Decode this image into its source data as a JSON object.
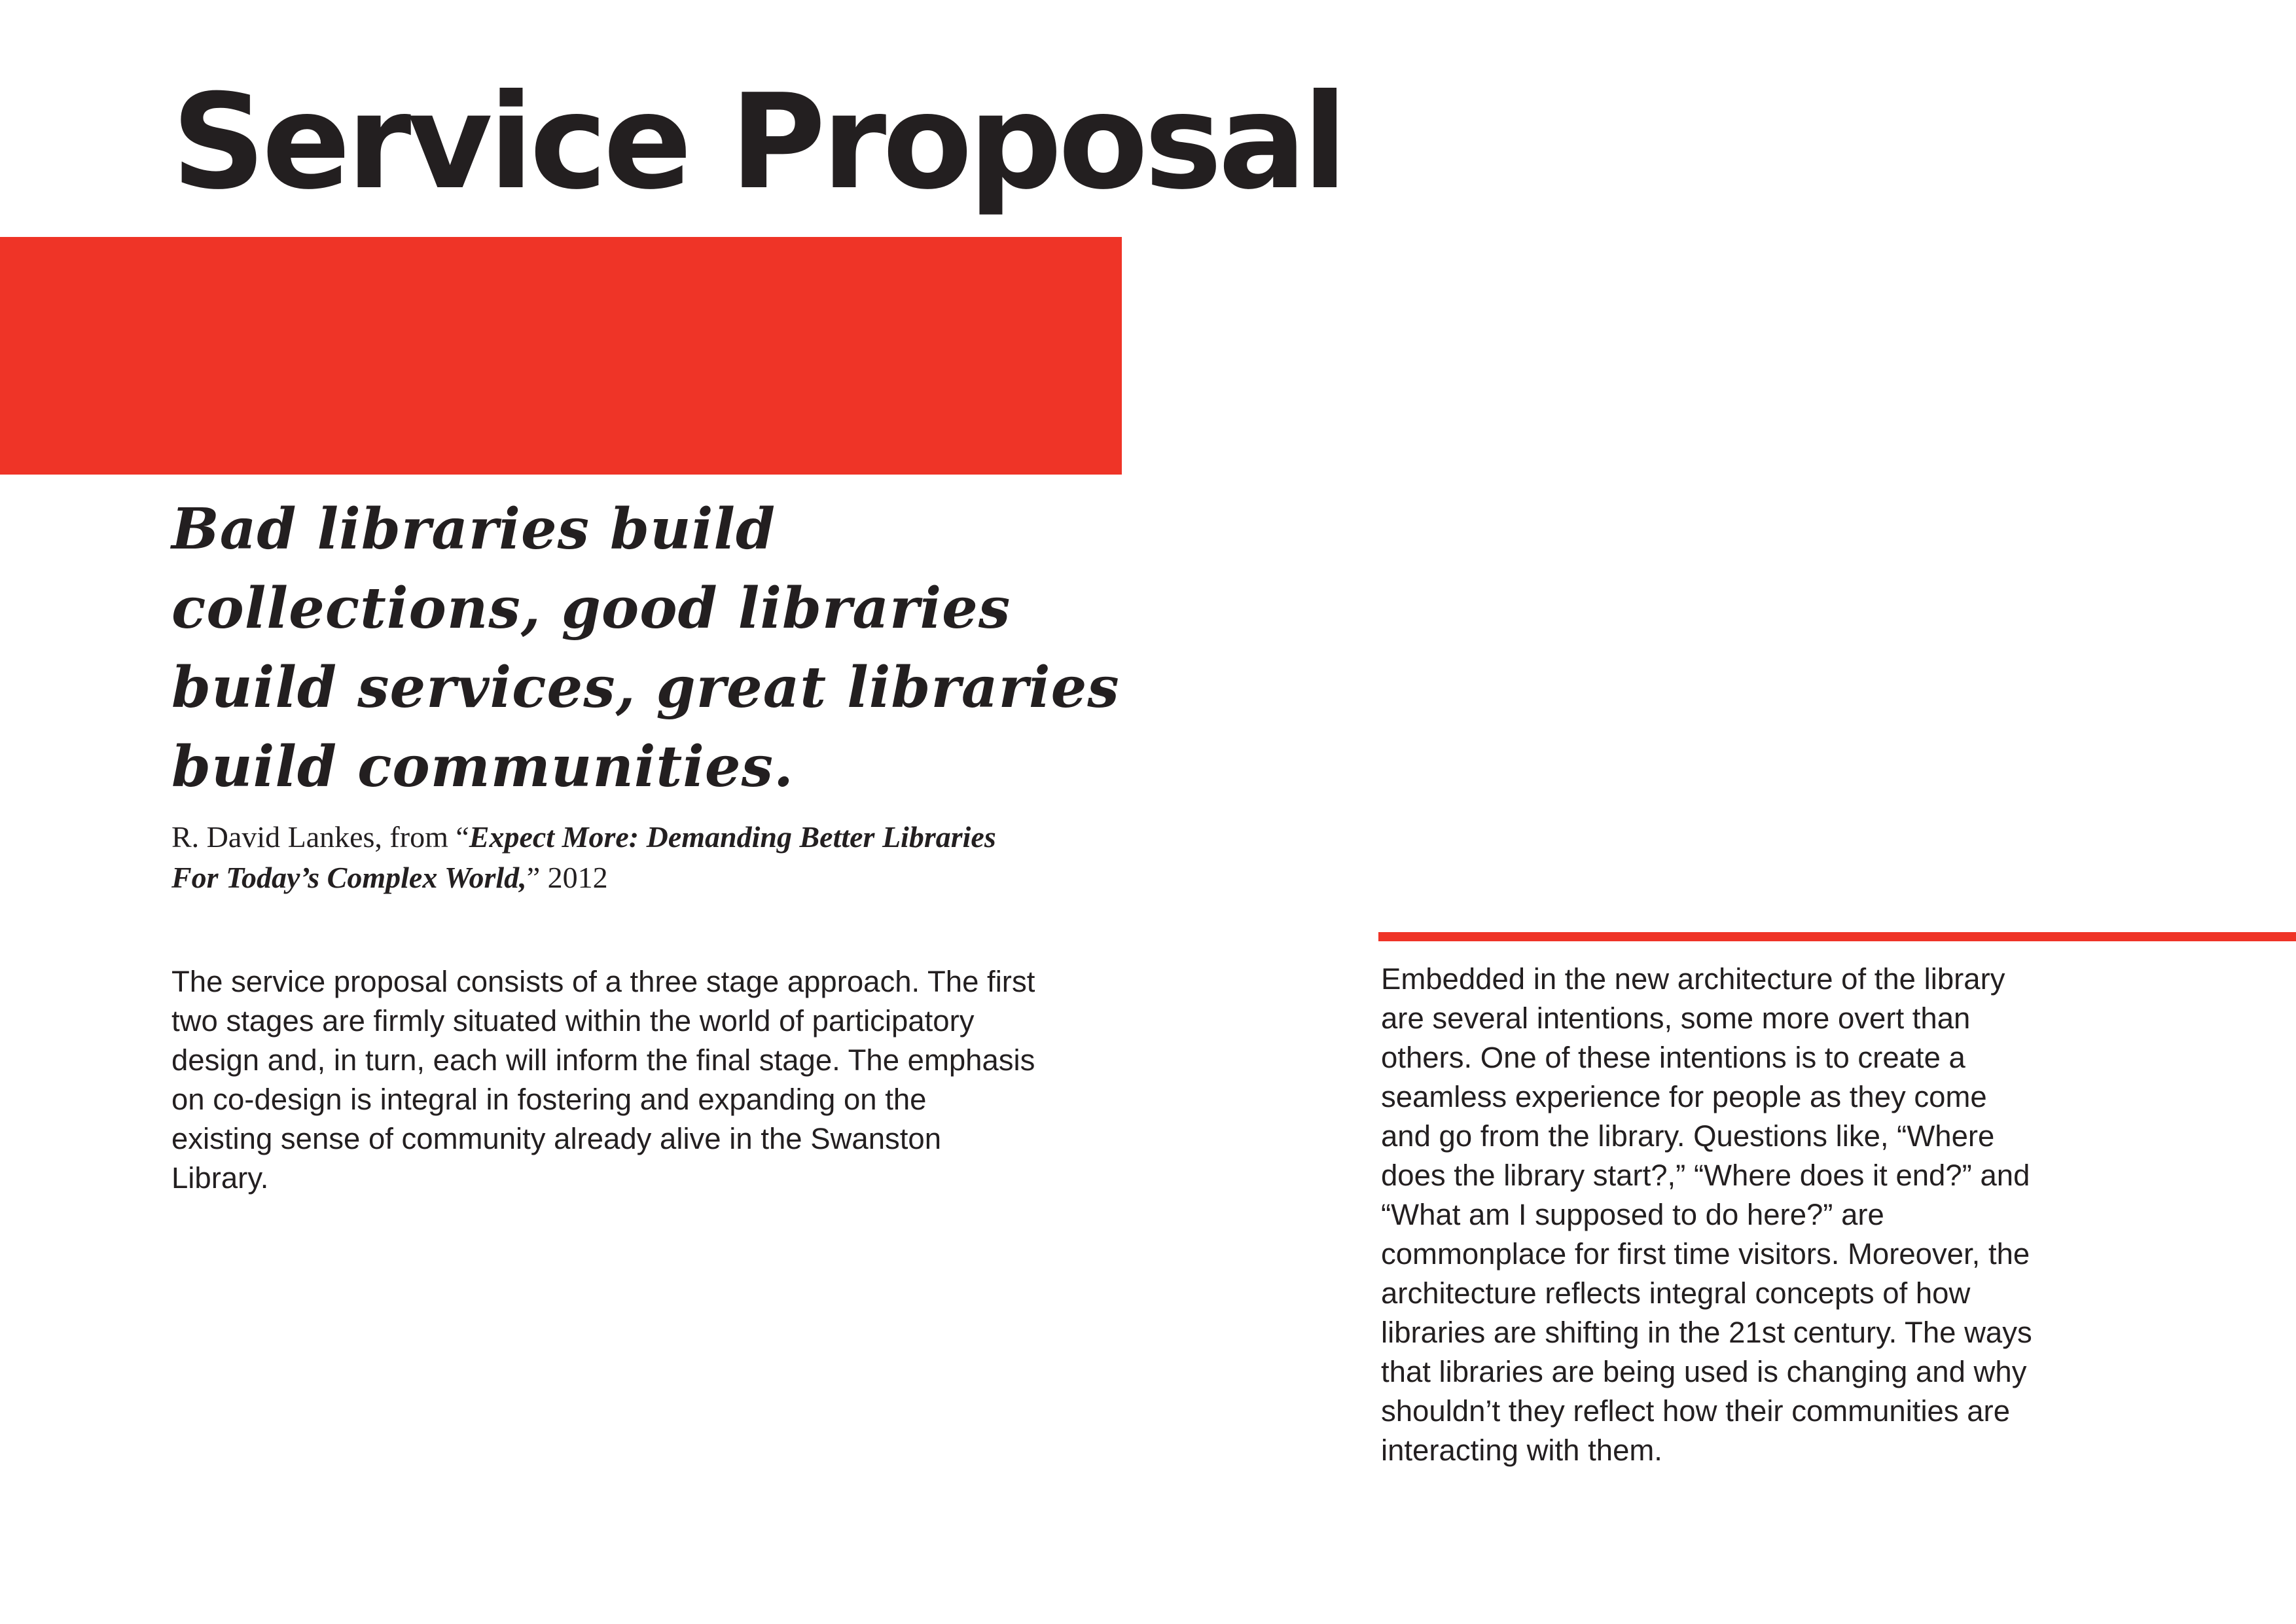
{
  "title": "Service Proposal",
  "colors": {
    "accent": "#ef3427",
    "text": "#231f20"
  },
  "quote": {
    "text": "Bad libraries build collections, good libraries build services, great libraries build communities.",
    "attribution_prefix": "R. David Lankes, from “",
    "attribution_book": "Expect More: Demanding Better Libraries For Today’s Complex World,",
    "attribution_suffix": "” 2012"
  },
  "body_left": "The service proposal consists of a three stage approach. The first two stages are firmly situated within the world of participatory design and, in turn, each will inform the final stage. The emphasis on co-design is integral in fostering and expanding on the existing sense of community already alive in the Swanston Library.",
  "body_right": "Embedded in the new architecture of the library are several intentions, some more overt than others. One of these intentions is to create a seamless experience for people as they come and go from the library. Questions like, “Where does the library start?,” “Where does it end?” and “What am I supposed to do here?” are commonplace for first time visitors. Moreover, the architecture reflects integral concepts of how libraries are shifting in the 21st century. The ways that libraries are being used is changing and why shouldn’t they reflect how their communities are interacting with them."
}
